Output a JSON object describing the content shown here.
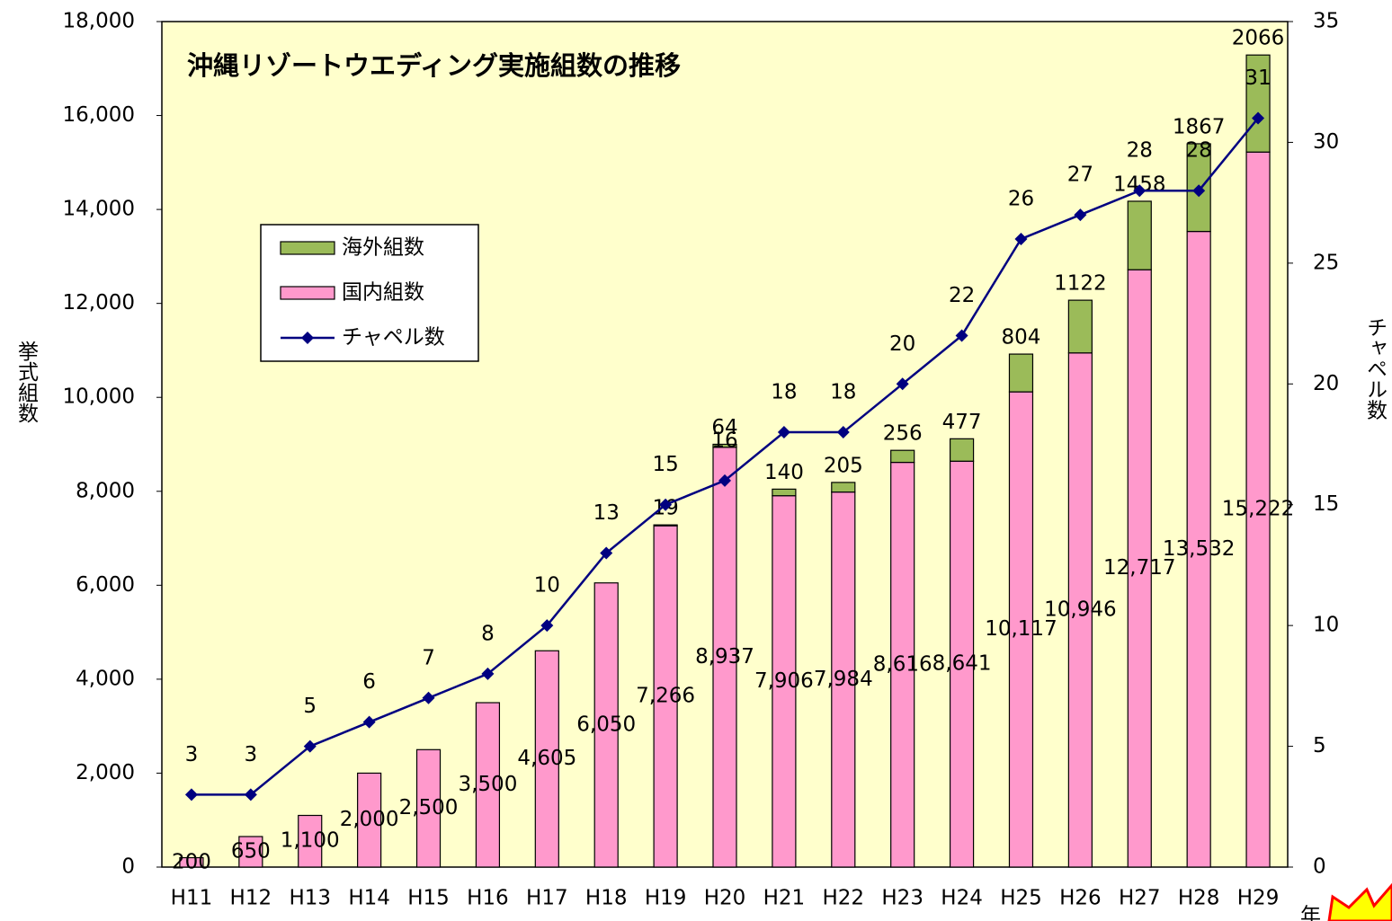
{
  "chart_data": {
    "type": "bar",
    "title": "沖縄リゾートウエディング実施組数の推移",
    "ylabel": "挙式組数",
    "y2label": "チャペル数",
    "xlabel": "年",
    "categories": [
      "H11",
      "H12",
      "H13",
      "H14",
      "H15",
      "H16",
      "H17",
      "H18",
      "H19",
      "H20",
      "H21",
      "H22",
      "H23",
      "H24",
      "H25",
      "H26",
      "H27",
      "H28",
      "H29"
    ],
    "series": [
      {
        "name": "海外組数",
        "color": "#9bbb59",
        "stacked": true,
        "values": [
          null,
          null,
          null,
          null,
          null,
          null,
          null,
          null,
          19,
          64,
          140,
          205,
          256,
          477,
          804,
          1122,
          1458,
          1867,
          2066
        ]
      },
      {
        "name": "国内組数",
        "color": "#ff99cc",
        "stacked": true,
        "values": [
          200,
          650,
          1100,
          2000,
          2500,
          3500,
          4605,
          6050,
          7266,
          8937,
          7906,
          7984,
          8616,
          8641,
          10117,
          10946,
          12717,
          13532,
          15222
        ],
        "value_labels": [
          "200",
          "650",
          "1,100",
          "2,000",
          "2,500",
          "3,500",
          "4,605",
          "6,050",
          "7,266",
          "8,937",
          "7,906",
          "7,984",
          "8,616",
          "8,641",
          "10,117",
          "10,946",
          "12,717",
          "13,532",
          "15,222"
        ]
      },
      {
        "name": "チャペル数",
        "color": "#000080",
        "type": "line",
        "axis": "y2",
        "values": [
          3,
          3,
          5,
          6,
          7,
          8,
          10,
          13,
          15,
          16,
          18,
          18,
          20,
          22,
          26,
          27,
          28,
          28,
          31
        ]
      }
    ],
    "ylim": [
      0,
      18000
    ],
    "yticks": [
      0,
      {
        "value": 2000,
        "label": "2,000"
      },
      {
        "value": 4000,
        "label": "4,000"
      },
      {
        "value": 6000,
        "label": "6,000"
      },
      {
        "value": 8000,
        "label": "8,000"
      },
      {
        "value": 10000,
        "label": "10,000"
      },
      {
        "value": 12000,
        "label": "12,000"
      },
      {
        "value": 14000,
        "label": "14,000"
      },
      {
        "value": 16000,
        "label": "16,000"
      },
      {
        "value": 18000,
        "label": "18,000"
      }
    ],
    "y2lim": [
      0,
      35
    ],
    "y2ticks": [
      0,
      5,
      10,
      15,
      20,
      25,
      30,
      35
    ],
    "legend": "upper left",
    "grid": false,
    "plot_background": "#ffffcc"
  }
}
